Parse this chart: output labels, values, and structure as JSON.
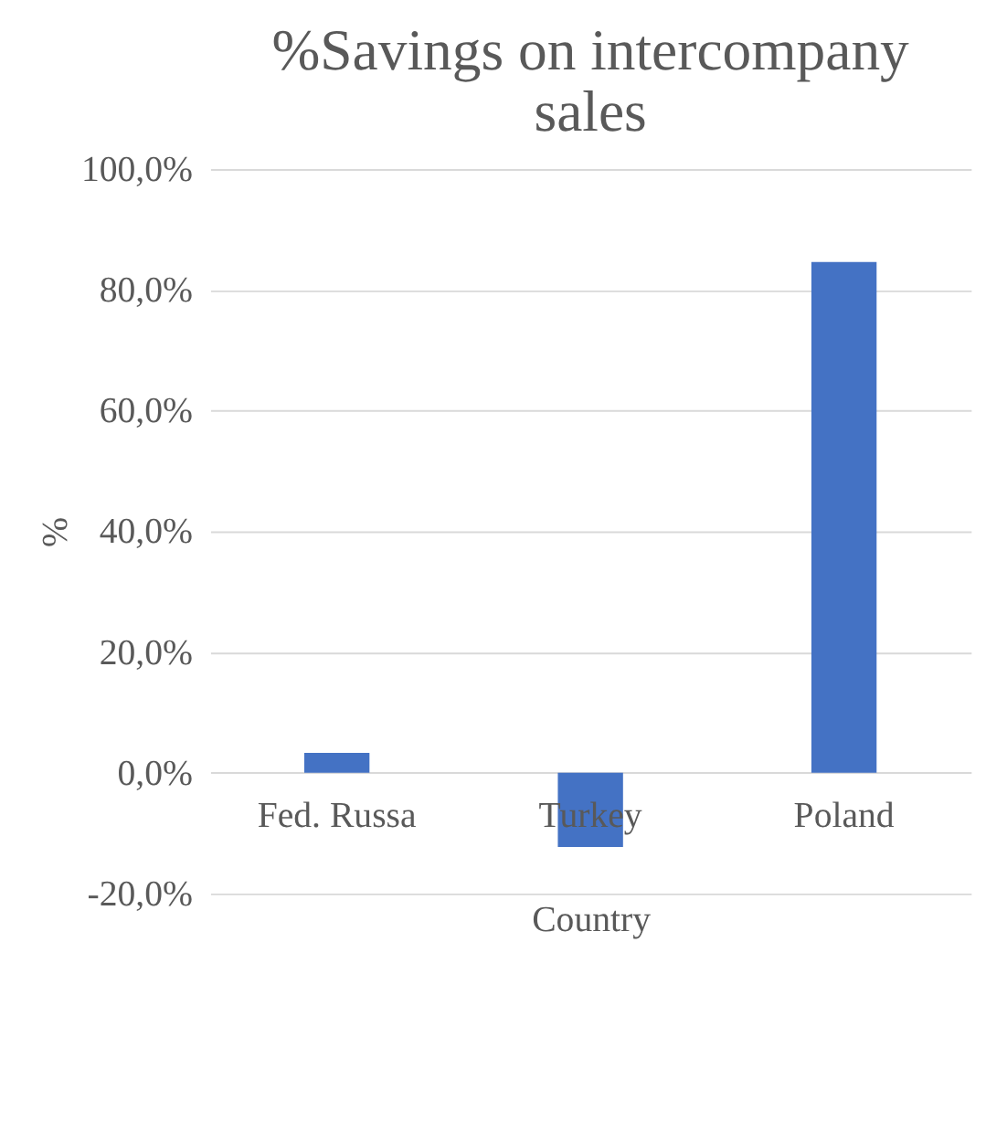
{
  "chart_data": {
    "type": "bar",
    "title": "%Savings on intercompany sales",
    "xlabel": "Country",
    "ylabel": "%",
    "categories": [
      "Fed. Russa",
      "Turkey",
      "Poland"
    ],
    "series": [
      {
        "color": "#4472c4",
        "values": [
          3.3,
          -12.3,
          84.6
        ]
      }
    ],
    "ylim": [
      -20,
      100
    ],
    "yticks": [
      {
        "value": -20,
        "label": "-20,0%"
      },
      {
        "value": 0,
        "label": "0,0%"
      },
      {
        "value": 20,
        "label": "20,0%"
      },
      {
        "value": 40,
        "label": "40,0%"
      },
      {
        "value": 60,
        "label": "60,0%"
      },
      {
        "value": 80,
        "label": "80,0%"
      },
      {
        "value": 100,
        "label": "100,0%"
      }
    ],
    "grid": "y",
    "legend": false
  }
}
